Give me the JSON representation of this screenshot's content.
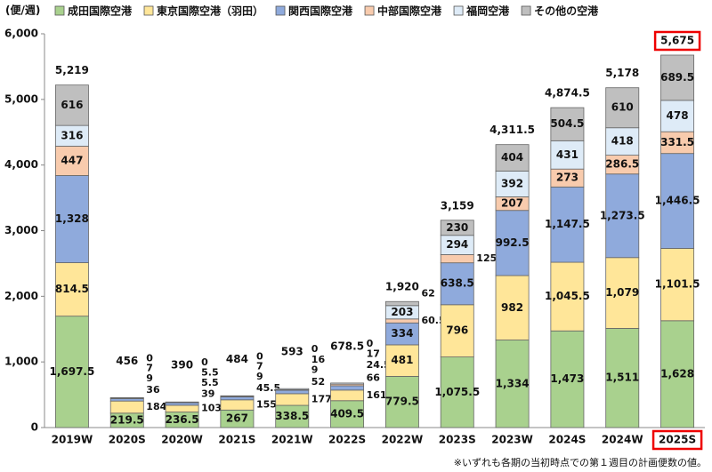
{
  "chart_data": {
    "type": "stacked-bar",
    "y_label": "(便/週)",
    "footnote": "※いずれも各期の当初時点での第１週目の計画便数の値。",
    "categories": [
      "2019W",
      "2020S",
      "2020W",
      "2021S",
      "2021W",
      "2022S",
      "2022W",
      "2023S",
      "2023W",
      "2024S",
      "2024W",
      "2025S"
    ],
    "series": [
      {
        "name": "成田国際空港",
        "color": "#a9d18e",
        "values": [
          1697.5,
          219.5,
          236.5,
          267,
          338.5,
          409.5,
          779.5,
          1075.5,
          1334,
          1473,
          1511,
          1628
        ],
        "value_labels": [
          "1,697.5",
          "219.5",
          "236.5",
          "267",
          "338.5",
          "409.5",
          "779.5",
          "1,075.5",
          "1,334",
          "1,473",
          "1,511",
          "1,628"
        ]
      },
      {
        "name": "東京国際空港（羽田）",
        "color": "#ffe699",
        "values": [
          814.5,
          184.5,
          103.5,
          155.5,
          177.5,
          161.5,
          481,
          796,
          982,
          1045.5,
          1079,
          1101.5
        ],
        "value_labels": [
          "814.5",
          "184.5",
          "103.5",
          "155.5",
          "177.5",
          "161.5",
          "481",
          "796",
          "982",
          "1,045.5",
          "1,079",
          "1,101.5"
        ]
      },
      {
        "name": "関西国際空港",
        "color": "#8faadc",
        "values": [
          1328,
          36,
          39,
          45.5,
          52,
          66,
          334,
          638.5,
          992.5,
          1147.5,
          1273.5,
          1446.5
        ],
        "value_labels": [
          "1,328",
          "36",
          "39",
          "45.5",
          "52",
          "66",
          "334",
          "638.5",
          "992.5",
          "1,147.5",
          "1,273.5",
          "1,446.5"
        ]
      },
      {
        "name": "中部国際空港",
        "color": "#f8cbad",
        "values": [
          447,
          9,
          5.5,
          9,
          9,
          24.5,
          60.5,
          125,
          207,
          273,
          286.5,
          331.5
        ],
        "value_labels": [
          "447",
          "9",
          "5.5",
          "9",
          "9",
          "24.5",
          "60.5",
          "125",
          "207",
          "273",
          "286.5",
          "331.5"
        ]
      },
      {
        "name": "福岡空港",
        "color": "#deebf7",
        "values": [
          316,
          7,
          5.5,
          7,
          16,
          17,
          203,
          294,
          392,
          431,
          418,
          478
        ],
        "value_labels": [
          "316",
          "7",
          "5.5",
          "7",
          "16",
          "17",
          "203",
          "294",
          "392",
          "431",
          "418",
          "478"
        ]
      },
      {
        "name": "その他の空港",
        "color": "#bfbfbf",
        "values": [
          616,
          0,
          0,
          0,
          0,
          0,
          62,
          230,
          404,
          504.5,
          610,
          689.5
        ],
        "value_labels": [
          "616",
          "0",
          "0",
          "0",
          "0",
          "0",
          "62",
          "230",
          "404",
          "504.5",
          "610",
          "689.5"
        ]
      }
    ],
    "totals": {
      "values": [
        5219,
        456,
        390,
        484,
        593,
        678.5,
        1920,
        3159,
        4311.5,
        4874.5,
        5178,
        5675
      ],
      "value_labels": [
        "5,219",
        "456",
        "390",
        "484",
        "593",
        "678.5",
        "1,920",
        "3,159",
        "4,311.5",
        "4,874.5",
        "5,178",
        "5,675"
      ]
    },
    "ylim": [
      0,
      6000
    ],
    "yticks": [
      0,
      {
        "value": 1000,
        "label": "1,000"
      },
      {
        "value": 2000,
        "label": "2,000"
      },
      {
        "value": 3000,
        "label": "3,000"
      },
      {
        "value": 4000,
        "label": "4,000"
      },
      {
        "value": 5000,
        "label": "5,000"
      },
      {
        "value": 6000,
        "label": "6,000"
      }
    ],
    "grid": false,
    "highlight_category": "2025S"
  }
}
